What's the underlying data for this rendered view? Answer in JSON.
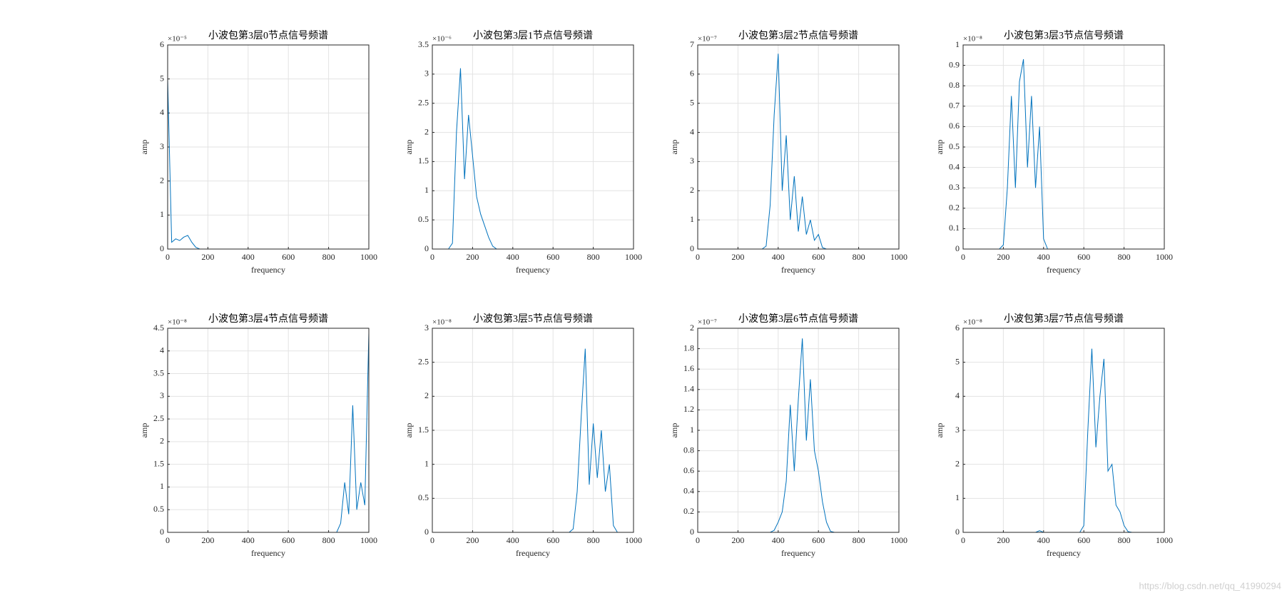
{
  "chart_data": [
    {
      "type": "line",
      "title": "小波包第3层0节点信号频谱",
      "xlabel": "frequency",
      "ylabel": "amp",
      "y_multiplier": "×10⁻⁵",
      "color": "#0072bd",
      "grid": true,
      "xlim": [
        0,
        1000
      ],
      "xticks": [
        0,
        200,
        400,
        600,
        800,
        1000
      ],
      "ylim": [
        0,
        6e-05
      ],
      "yticks": [
        0,
        {
          "value": 1e-05,
          "label": "1"
        },
        {
          "value": 2e-05,
          "label": "2"
        },
        {
          "value": 3e-05,
          "label": "3"
        },
        {
          "value": 4e-05,
          "label": "4"
        },
        {
          "value": 5e-05,
          "label": "5"
        },
        {
          "value": 6e-05,
          "label": "6"
        }
      ],
      "x": [
        0,
        20,
        40,
        60,
        80,
        100,
        120,
        140,
        160,
        180,
        200,
        220,
        240,
        260,
        280,
        300,
        320,
        340,
        360,
        380,
        400,
        420,
        440,
        460,
        480,
        500,
        520,
        540,
        560,
        580,
        600,
        620,
        640,
        660,
        680,
        700,
        720,
        740,
        760,
        780,
        800,
        820,
        840,
        860,
        880,
        900,
        920,
        940,
        960,
        980,
        1000
      ],
      "values": [
        5e-05,
        2e-06,
        3e-06,
        2.5e-06,
        3.5e-06,
        4e-06,
        2e-06,
        5e-07,
        0,
        0,
        0,
        0,
        0,
        0,
        0,
        0,
        0,
        0,
        0,
        0,
        0,
        0,
        0,
        0,
        0,
        0,
        0,
        0,
        0,
        0,
        0,
        0,
        0,
        0,
        0,
        0,
        0,
        0,
        0,
        0,
        0,
        0,
        0,
        0,
        0,
        0,
        0,
        0,
        0,
        0,
        0
      ]
    },
    {
      "type": "line",
      "title": "小波包第3层1节点信号频谱",
      "xlabel": "frequency",
      "ylabel": "amp",
      "y_multiplier": "×10⁻⁶",
      "color": "#0072bd",
      "grid": true,
      "xlim": [
        0,
        1000
      ],
      "xticks": [
        0,
        200,
        400,
        600,
        800,
        1000
      ],
      "ylim": [
        0,
        3.5e-06
      ],
      "yticks": [
        0,
        {
          "value": 5e-07,
          "label": "0.5"
        },
        {
          "value": 1e-06,
          "label": "1"
        },
        {
          "value": 1.5e-06,
          "label": "1.5"
        },
        {
          "value": 2e-06,
          "label": "2"
        },
        {
          "value": 2.5e-06,
          "label": "2.5"
        },
        {
          "value": 3e-06,
          "label": "3"
        },
        {
          "value": 3.5e-06,
          "label": "3.5"
        }
      ],
      "x": [
        0,
        20,
        40,
        60,
        80,
        100,
        120,
        140,
        160,
        180,
        200,
        220,
        240,
        260,
        280,
        300,
        320,
        340,
        360,
        380,
        400,
        420,
        440,
        460,
        480,
        500,
        520,
        540,
        560,
        580,
        600,
        620,
        640,
        660,
        680,
        700,
        720,
        740,
        760,
        780,
        800,
        820,
        840,
        860,
        880,
        900,
        920,
        940,
        960,
        980,
        1000
      ],
      "values": [
        0,
        0,
        0,
        0,
        0,
        1e-07,
        2e-06,
        3.1e-06,
        1.2e-06,
        2.3e-06,
        1.6e-06,
        9e-07,
        6e-07,
        4e-07,
        2e-07,
        5e-08,
        0,
        0,
        0,
        0,
        0,
        0,
        0,
        0,
        0,
        0,
        0,
        0,
        0,
        0,
        0,
        0,
        0,
        0,
        0,
        0,
        0,
        0,
        0,
        0,
        0,
        0,
        0,
        0,
        0,
        0,
        0,
        0,
        0,
        0,
        0
      ]
    },
    {
      "type": "line",
      "title": "小波包第3层2节点信号频谱",
      "xlabel": "frequency",
      "ylabel": "amp",
      "y_multiplier": "×10⁻⁷",
      "color": "#0072bd",
      "grid": true,
      "xlim": [
        0,
        1000
      ],
      "xticks": [
        0,
        200,
        400,
        600,
        800,
        1000
      ],
      "ylim": [
        0,
        7e-07
      ],
      "yticks": [
        0,
        {
          "value": 1e-07,
          "label": "1"
        },
        {
          "value": 2e-07,
          "label": "2"
        },
        {
          "value": 3e-07,
          "label": "3"
        },
        {
          "value": 4e-07,
          "label": "4"
        },
        {
          "value": 5e-07,
          "label": "5"
        },
        {
          "value": 6e-07,
          "label": "6"
        },
        {
          "value": 7e-07,
          "label": "7"
        }
      ],
      "x": [
        0,
        20,
        40,
        60,
        80,
        100,
        120,
        140,
        160,
        180,
        200,
        220,
        240,
        260,
        280,
        300,
        320,
        340,
        360,
        380,
        400,
        420,
        440,
        460,
        480,
        500,
        520,
        540,
        560,
        580,
        600,
        620,
        640,
        660,
        680,
        700,
        720,
        740,
        760,
        780,
        800,
        820,
        840,
        860,
        880,
        900,
        920,
        940,
        960,
        980,
        1000
      ],
      "values": [
        0,
        0,
        0,
        0,
        0,
        0,
        0,
        0,
        0,
        0,
        0,
        0,
        0,
        0,
        0,
        0,
        0,
        1e-08,
        1.5e-07,
        4.6e-07,
        6.7e-07,
        2e-07,
        3.9e-07,
        1e-07,
        2.5e-07,
        6e-08,
        1.8e-07,
        5e-08,
        1e-07,
        3e-08,
        5e-08,
        5e-09,
        0,
        0,
        0,
        0,
        0,
        0,
        0,
        0,
        0,
        0,
        0,
        0,
        0,
        0,
        0,
        0,
        0,
        0,
        0
      ]
    },
    {
      "type": "line",
      "title": "小波包第3层3节点信号频谱",
      "xlabel": "frequency",
      "ylabel": "amp",
      "y_multiplier": "×10⁻⁸",
      "color": "#0072bd",
      "grid": true,
      "xlim": [
        0,
        1000
      ],
      "xticks": [
        0,
        200,
        400,
        600,
        800,
        1000
      ],
      "ylim": [
        0,
        1e-08
      ],
      "yticks": [
        0,
        {
          "value": 1e-09,
          "label": "0.1"
        },
        {
          "value": 2e-09,
          "label": "0.2"
        },
        {
          "value": 3e-09,
          "label": "0.3"
        },
        {
          "value": 4e-09,
          "label": "0.4"
        },
        {
          "value": 5e-09,
          "label": "0.5"
        },
        {
          "value": 6e-09,
          "label": "0.6"
        },
        {
          "value": 7e-09,
          "label": "0.7"
        },
        {
          "value": 8e-09,
          "label": "0.8"
        },
        {
          "value": 9e-09,
          "label": "0.9"
        },
        {
          "value": 1e-08,
          "label": "1"
        }
      ],
      "x": [
        0,
        20,
        40,
        60,
        80,
        100,
        120,
        140,
        160,
        180,
        200,
        220,
        240,
        260,
        280,
        300,
        320,
        340,
        360,
        380,
        400,
        420,
        440,
        460,
        480,
        500,
        520,
        540,
        560,
        580,
        600,
        620,
        640,
        660,
        680,
        700,
        720,
        740,
        760,
        780,
        800,
        820,
        840,
        860,
        880,
        900,
        920,
        940,
        960,
        980,
        1000
      ],
      "values": [
        0,
        0,
        0,
        0,
        0,
        0,
        0,
        0,
        0,
        0,
        2e-10,
        3e-09,
        7.5e-09,
        3e-09,
        8.2e-09,
        9.3e-09,
        4e-09,
        7.5e-09,
        3e-09,
        6e-09,
        5e-10,
        0,
        0,
        0,
        0,
        0,
        0,
        0,
        0,
        0,
        0,
        0,
        0,
        0,
        0,
        0,
        0,
        0,
        0,
        0,
        0,
        0,
        0,
        0,
        0,
        0,
        0,
        0,
        0,
        0,
        0
      ]
    },
    {
      "type": "line",
      "title": "小波包第3层4节点信号频谱",
      "xlabel": "frequency",
      "ylabel": "amp",
      "y_multiplier": "×10⁻⁸",
      "color": "#0072bd",
      "grid": true,
      "xlim": [
        0,
        1000
      ],
      "xticks": [
        0,
        200,
        400,
        600,
        800,
        1000
      ],
      "ylim": [
        0,
        4.5e-08
      ],
      "yticks": [
        0,
        {
          "value": 5e-09,
          "label": "0.5"
        },
        {
          "value": 1e-08,
          "label": "1"
        },
        {
          "value": 1.5e-08,
          "label": "1.5"
        },
        {
          "value": 2e-08,
          "label": "2"
        },
        {
          "value": 2.5e-08,
          "label": "2.5"
        },
        {
          "value": 3e-08,
          "label": "3"
        },
        {
          "value": 3.5e-08,
          "label": "3.5"
        },
        {
          "value": 4e-08,
          "label": "4"
        },
        {
          "value": 4.5e-08,
          "label": "4.5"
        }
      ],
      "x": [
        0,
        20,
        40,
        60,
        80,
        100,
        120,
        140,
        160,
        180,
        200,
        220,
        240,
        260,
        280,
        300,
        320,
        340,
        360,
        380,
        400,
        420,
        440,
        460,
        480,
        500,
        520,
        540,
        560,
        580,
        600,
        620,
        640,
        660,
        680,
        700,
        720,
        740,
        760,
        780,
        800,
        820,
        840,
        860,
        880,
        900,
        920,
        940,
        960,
        980,
        1000
      ],
      "values": [
        0,
        0,
        0,
        0,
        0,
        0,
        0,
        0,
        0,
        0,
        0,
        0,
        0,
        0,
        0,
        0,
        0,
        0,
        0,
        0,
        0,
        0,
        0,
        0,
        0,
        0,
        0,
        0,
        0,
        0,
        0,
        0,
        0,
        0,
        0,
        0,
        0,
        0,
        0,
        0,
        0,
        0,
        0,
        2e-09,
        1.1e-08,
        4e-09,
        2.8e-08,
        5e-09,
        1.1e-08,
        6e-09,
        4.4e-08
      ]
    },
    {
      "type": "line",
      "title": "小波包第3层5节点信号频谱",
      "xlabel": "frequency",
      "ylabel": "amp",
      "y_multiplier": "×10⁻⁸",
      "color": "#0072bd",
      "grid": true,
      "xlim": [
        0,
        1000
      ],
      "xticks": [
        0,
        200,
        400,
        600,
        800,
        1000
      ],
      "ylim": [
        0,
        3e-08
      ],
      "yticks": [
        0,
        {
          "value": 5e-09,
          "label": "0.5"
        },
        {
          "value": 1e-08,
          "label": "1"
        },
        {
          "value": 1.5e-08,
          "label": "1.5"
        },
        {
          "value": 2e-08,
          "label": "2"
        },
        {
          "value": 2.5e-08,
          "label": "2.5"
        },
        {
          "value": 3e-08,
          "label": "3"
        }
      ],
      "x": [
        0,
        20,
        40,
        60,
        80,
        100,
        120,
        140,
        160,
        180,
        200,
        220,
        240,
        260,
        280,
        300,
        320,
        340,
        360,
        380,
        400,
        420,
        440,
        460,
        480,
        500,
        520,
        540,
        560,
        580,
        600,
        620,
        640,
        660,
        680,
        700,
        720,
        740,
        760,
        780,
        800,
        820,
        840,
        860,
        880,
        900,
        920,
        940,
        960,
        980,
        1000
      ],
      "values": [
        0,
        0,
        0,
        0,
        0,
        0,
        0,
        0,
        0,
        0,
        0,
        0,
        0,
        0,
        0,
        0,
        0,
        0,
        0,
        0,
        0,
        0,
        0,
        0,
        0,
        0,
        0,
        0,
        0,
        0,
        0,
        0,
        0,
        0,
        0,
        5e-10,
        6e-09,
        1.7e-08,
        2.7e-08,
        7e-09,
        1.6e-08,
        8e-09,
        1.5e-08,
        6e-09,
        1e-08,
        1e-09,
        0,
        0,
        0,
        0,
        0
      ]
    },
    {
      "type": "line",
      "title": "小波包第3层6节点信号频谱",
      "xlabel": "frequency",
      "ylabel": "amp",
      "y_multiplier": "×10⁻⁷",
      "color": "#0072bd",
      "grid": true,
      "xlim": [
        0,
        1000
      ],
      "xticks": [
        0,
        200,
        400,
        600,
        800,
        1000
      ],
      "ylim": [
        0,
        2e-07
      ],
      "yticks": [
        0,
        {
          "value": 2e-08,
          "label": "0.2"
        },
        {
          "value": 4e-08,
          "label": "0.4"
        },
        {
          "value": 6e-08,
          "label": "0.6"
        },
        {
          "value": 8e-08,
          "label": "0.8"
        },
        {
          "value": 1e-07,
          "label": "1"
        },
        {
          "value": 1.2e-07,
          "label": "1.2"
        },
        {
          "value": 1.4e-07,
          "label": "1.4"
        },
        {
          "value": 1.6e-07,
          "label": "1.6"
        },
        {
          "value": 1.8e-07,
          "label": "1.8"
        },
        {
          "value": 2e-07,
          "label": "2"
        }
      ],
      "x": [
        0,
        20,
        40,
        60,
        80,
        100,
        120,
        140,
        160,
        180,
        200,
        220,
        240,
        260,
        280,
        300,
        320,
        340,
        360,
        380,
        400,
        420,
        440,
        460,
        480,
        500,
        520,
        540,
        560,
        580,
        600,
        620,
        640,
        660,
        680,
        700,
        720,
        740,
        760,
        780,
        800,
        820,
        840,
        860,
        880,
        900,
        920,
        940,
        960,
        980,
        1000
      ],
      "values": [
        0,
        0,
        0,
        0,
        0,
        0,
        0,
        0,
        0,
        0,
        0,
        0,
        0,
        0,
        0,
        0,
        0,
        0,
        0,
        2e-09,
        1e-08,
        2e-08,
        5e-08,
        1.25e-07,
        6e-08,
        1.3e-07,
        1.9e-07,
        9e-08,
        1.5e-07,
        8e-08,
        6e-08,
        3e-08,
        1e-08,
        1e-09,
        0,
        0,
        0,
        0,
        0,
        0,
        0,
        0,
        0,
        0,
        0,
        0,
        0,
        0,
        0,
        0,
        0
      ]
    },
    {
      "type": "line",
      "title": "小波包第3层7节点信号频谱",
      "xlabel": "frequency",
      "ylabel": "amp",
      "y_multiplier": "×10⁻⁸",
      "color": "#0072bd",
      "grid": true,
      "xlim": [
        0,
        1000
      ],
      "xticks": [
        0,
        200,
        400,
        600,
        800,
        1000
      ],
      "ylim": [
        0,
        6e-08
      ],
      "yticks": [
        0,
        {
          "value": 1e-08,
          "label": "1"
        },
        {
          "value": 2e-08,
          "label": "2"
        },
        {
          "value": 3e-08,
          "label": "3"
        },
        {
          "value": 4e-08,
          "label": "4"
        },
        {
          "value": 5e-08,
          "label": "5"
        },
        {
          "value": 6e-08,
          "label": "6"
        }
      ],
      "x": [
        0,
        20,
        40,
        60,
        80,
        100,
        120,
        140,
        160,
        180,
        200,
        220,
        240,
        260,
        280,
        300,
        320,
        340,
        360,
        380,
        400,
        420,
        440,
        460,
        480,
        500,
        520,
        540,
        560,
        580,
        600,
        620,
        640,
        660,
        680,
        700,
        720,
        740,
        760,
        780,
        800,
        820,
        840,
        860,
        880,
        900,
        920,
        940,
        960,
        980,
        1000
      ],
      "values": [
        0,
        0,
        0,
        0,
        0,
        0,
        0,
        0,
        0,
        0,
        0,
        0,
        0,
        0,
        0,
        0,
        0,
        0,
        0,
        5e-10,
        0,
        0,
        0,
        0,
        0,
        0,
        0,
        0,
        0,
        0,
        2e-09,
        3e-08,
        5.4e-08,
        2.5e-08,
        4e-08,
        5.1e-08,
        1.8e-08,
        2e-08,
        8e-09,
        6e-09,
        2e-09,
        2e-10,
        0,
        0,
        0,
        0,
        0,
        0,
        0,
        0,
        0
      ]
    }
  ],
  "watermark": "https://blog.csdn.net/qq_41990294"
}
